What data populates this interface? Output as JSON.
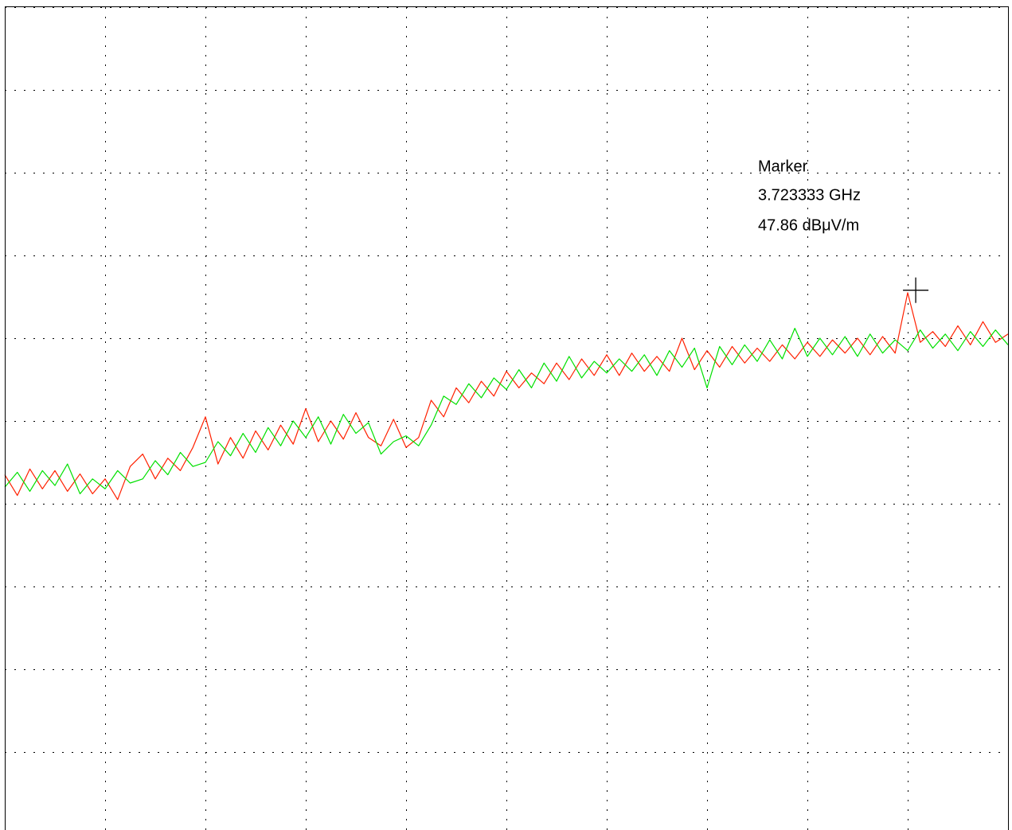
{
  "chart_data": {
    "type": "line",
    "xlim": [
      0,
      10
    ],
    "ylim": [
      0,
      10
    ],
    "xticks": [
      0,
      1,
      2,
      3,
      4,
      5,
      6,
      7,
      8,
      9,
      10
    ],
    "yticks": [
      0,
      1,
      2,
      3,
      4,
      5,
      6,
      7,
      8,
      9,
      10
    ],
    "grid": true,
    "x": [
      0,
      0.125,
      0.25,
      0.375,
      0.5,
      0.625,
      0.75,
      0.875,
      1,
      1.125,
      1.25,
      1.375,
      1.5,
      1.625,
      1.75,
      1.875,
      2,
      2.125,
      2.25,
      2.375,
      2.5,
      2.625,
      2.75,
      2.875,
      3,
      3.125,
      3.25,
      3.375,
      3.5,
      3.625,
      3.75,
      3.875,
      4,
      4.125,
      4.25,
      4.375,
      4.5,
      4.625,
      4.75,
      4.875,
      5,
      5.125,
      5.25,
      5.375,
      5.5,
      5.625,
      5.75,
      5.875,
      6,
      6.125,
      6.25,
      6.375,
      6.5,
      6.625,
      6.75,
      6.875,
      7,
      7.125,
      7.25,
      7.375,
      7.5,
      7.625,
      7.75,
      7.875,
      8,
      8.125,
      8.25,
      8.375,
      8.5,
      8.625,
      8.75,
      8.875,
      9,
      9.125,
      9.25,
      9.375,
      9.5,
      9.625,
      9.75,
      9.875,
      10
    ],
    "series": [
      {
        "color": "#ff2000",
        "values": [
          4.35,
          4.1,
          4.42,
          4.18,
          4.4,
          4.15,
          4.36,
          4.12,
          4.3,
          4.05,
          4.45,
          4.6,
          4.3,
          4.55,
          4.4,
          4.68,
          5.05,
          4.48,
          4.8,
          4.55,
          4.88,
          4.65,
          4.95,
          4.72,
          5.15,
          4.75,
          5.0,
          4.78,
          5.1,
          4.8,
          4.7,
          5.02,
          4.68,
          4.8,
          5.25,
          5.05,
          5.4,
          5.22,
          5.48,
          5.3,
          5.6,
          5.4,
          5.58,
          5.45,
          5.7,
          5.5,
          5.75,
          5.55,
          5.8,
          5.55,
          5.82,
          5.6,
          5.78,
          5.6,
          6.0,
          5.62,
          5.85,
          5.65,
          5.9,
          5.7,
          5.88,
          5.72,
          5.92,
          5.75,
          5.95,
          5.78,
          5.98,
          5.82,
          6.0,
          5.8,
          6.02,
          5.82,
          6.55,
          5.95,
          6.08,
          5.9,
          6.15,
          5.92,
          6.2,
          5.95,
          6.05
        ]
      },
      {
        "color": "#00e000",
        "values": [
          4.2,
          4.38,
          4.15,
          4.4,
          4.22,
          4.48,
          4.12,
          4.3,
          4.18,
          4.4,
          4.25,
          4.3,
          4.52,
          4.35,
          4.62,
          4.45,
          4.5,
          4.75,
          4.58,
          4.85,
          4.62,
          4.92,
          4.7,
          5.0,
          4.8,
          5.05,
          4.72,
          5.08,
          4.85,
          4.98,
          4.6,
          4.75,
          4.82,
          4.7,
          4.95,
          5.3,
          5.2,
          5.45,
          5.28,
          5.52,
          5.38,
          5.62,
          5.4,
          5.7,
          5.48,
          5.78,
          5.52,
          5.72,
          5.58,
          5.75,
          5.6,
          5.8,
          5.55,
          5.85,
          5.65,
          5.88,
          5.4,
          5.9,
          5.68,
          5.92,
          5.72,
          5.98,
          5.75,
          6.12,
          5.78,
          6.0,
          5.8,
          6.02,
          5.78,
          6.05,
          5.82,
          5.98,
          5.85,
          6.1,
          5.88,
          6.05,
          5.85,
          6.08,
          5.9,
          6.1,
          5.92
        ]
      }
    ],
    "marker": {
      "x": 9.08,
      "y": 6.58,
      "label": "Marker",
      "frequency": "3.723333 GHz",
      "level": "47.86  dBμV/m"
    }
  }
}
